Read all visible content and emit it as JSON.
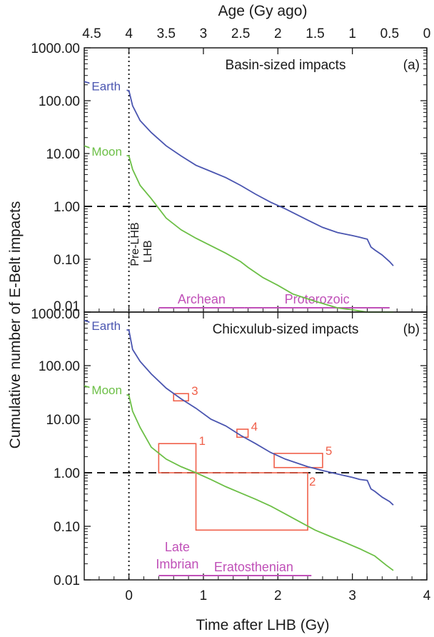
{
  "figure": {
    "top_axis_label": "Age (Gy ago)",
    "bottom_axis_label": "Time after LHB (Gy)",
    "y_axis_label": "Cumulative number of E-Belt impacts",
    "lhb_labels": [
      "Pre-LHB",
      "LHB"
    ]
  },
  "colors": {
    "earth": "#4a55b0",
    "moon": "#6cbf46",
    "box": "#f0604a",
    "era": "#c050b8",
    "axis": "#1a1a1a"
  },
  "chart_data": [
    {
      "type": "line",
      "title": "Basin-sized impacts",
      "panel_label": "(a)",
      "xlabel": "Time after LHB (Gy)",
      "top_xlabel": "Age (Gy ago)",
      "ylabel": "Cumulative number of E-Belt impacts",
      "xlim": [
        -0.6,
        4.0
      ],
      "ylim": [
        0.01,
        1000
      ],
      "yscale": "log",
      "yticks": [
        1000,
        100,
        10,
        1,
        0.1,
        0.01
      ],
      "ytick_labels": [
        "1000.00",
        "100.00",
        "10.00",
        "1.00",
        "0.10",
        "0.01"
      ],
      "xticks": [
        0,
        1,
        2,
        3,
        4
      ],
      "xtick_labels": [
        "0",
        "1",
        "2",
        "3",
        "4"
      ],
      "top_ticks": [
        4.5,
        4,
        3.5,
        3,
        2.5,
        2,
        1.5,
        1,
        0.5,
        0
      ],
      "top_tick_labels": [
        "4.5",
        "4",
        "3.5",
        "3",
        "2.5",
        "2",
        "1.5",
        "1",
        "0.5",
        "0"
      ],
      "reference_lines": [
        {
          "axis": "y",
          "value": 1
        },
        {
          "axis": "x",
          "value": 0
        }
      ],
      "series": [
        {
          "name": "Earth",
          "color": "#4a55b0",
          "x": [
            -0.6,
            -0.4,
            -0.2,
            0.0,
            0.05,
            0.15,
            0.3,
            0.5,
            0.7,
            0.9,
            1.1,
            1.3,
            1.5,
            1.7,
            1.9,
            2.1,
            2.4,
            2.6,
            2.8,
            3.0,
            3.1,
            3.2,
            3.25,
            3.3,
            3.4,
            3.5,
            3.55
          ],
          "y": [
            230,
            190,
            170,
            155,
            80,
            42,
            25,
            14,
            9,
            6,
            4.6,
            3.5,
            2.5,
            1.7,
            1.2,
            0.9,
            0.55,
            0.4,
            0.32,
            0.28,
            0.26,
            0.24,
            0.17,
            0.15,
            0.12,
            0.09,
            0.075
          ]
        },
        {
          "name": "Moon",
          "color": "#6cbf46",
          "x": [
            -0.6,
            -0.4,
            -0.2,
            0.0,
            0.05,
            0.15,
            0.3,
            0.5,
            0.7,
            0.9,
            1.1,
            1.3,
            1.5,
            1.6,
            1.8,
            2.0,
            2.2,
            2.5,
            2.8,
            3.0,
            3.2,
            3.4,
            3.55
          ],
          "y": [
            14,
            11,
            10,
            9,
            5,
            2.5,
            1.4,
            0.6,
            0.36,
            0.25,
            0.18,
            0.13,
            0.09,
            0.07,
            0.045,
            0.032,
            0.022,
            0.016,
            0.012,
            0.011,
            0.01,
            0.01,
            0.01
          ]
        }
      ],
      "eras": [
        {
          "label": "Archean",
          "x_start": 0.4,
          "x_end": 1.55
        },
        {
          "label": "Proterozoic",
          "x_start": 1.55,
          "x_end": 3.5
        }
      ]
    },
    {
      "type": "line",
      "title": "Chicxulub-sized impacts",
      "panel_label": "(b)",
      "xlabel": "Time after LHB (Gy)",
      "ylabel": "Cumulative number of E-Belt impacts",
      "xlim": [
        -0.6,
        4.0
      ],
      "ylim": [
        0.01,
        1000
      ],
      "yscale": "log",
      "yticks": [
        1000,
        100,
        10,
        1,
        0.1,
        0.01
      ],
      "ytick_labels": [
        "1000.00",
        "100.00",
        "10.00",
        "1.00",
        "0.10",
        "0.01"
      ],
      "xticks": [
        0,
        1,
        2,
        3,
        4
      ],
      "xtick_labels": [
        "0",
        "1",
        "2",
        "3",
        "4"
      ],
      "reference_lines": [
        {
          "axis": "y",
          "value": 1
        },
        {
          "axis": "x",
          "value": 0
        }
      ],
      "series": [
        {
          "name": "Earth",
          "color": "#4a55b0",
          "x": [
            -0.6,
            -0.4,
            -0.2,
            0.0,
            0.05,
            0.15,
            0.3,
            0.5,
            0.7,
            0.9,
            1.1,
            1.3,
            1.5,
            1.7,
            1.9,
            2.1,
            2.4,
            2.6,
            2.8,
            3.0,
            3.1,
            3.2,
            3.25,
            3.3,
            3.4,
            3.5,
            3.55
          ],
          "y": [
            700,
            560,
            490,
            460,
            200,
            120,
            70,
            38,
            24,
            16,
            10,
            7.5,
            5,
            3.5,
            2.4,
            1.8,
            1.3,
            1.1,
            0.95,
            0.82,
            0.75,
            0.72,
            0.5,
            0.45,
            0.35,
            0.29,
            0.25
          ]
        },
        {
          "name": "Moon",
          "color": "#6cbf46",
          "x": [
            -0.6,
            -0.4,
            -0.2,
            0.0,
            0.05,
            0.15,
            0.3,
            0.5,
            0.7,
            0.9,
            1.1,
            1.3,
            1.5,
            1.7,
            1.9,
            2.1,
            2.3,
            2.5,
            2.7,
            2.9,
            3.1,
            3.3,
            3.45,
            3.55
          ],
          "y": [
            42,
            35,
            31,
            28,
            14,
            7,
            3,
            1.8,
            1.3,
            1.0,
            0.75,
            0.55,
            0.42,
            0.32,
            0.24,
            0.17,
            0.12,
            0.085,
            0.065,
            0.05,
            0.038,
            0.028,
            0.019,
            0.015
          ]
        }
      ],
      "boxes": [
        {
          "label": "1",
          "x": [
            0.4,
            0.9
          ],
          "y": [
            1.0,
            3.5
          ]
        },
        {
          "label": "2",
          "x": [
            0.9,
            2.4
          ],
          "y": [
            0.085,
            1.0
          ]
        },
        {
          "label": "3",
          "x": [
            0.6,
            0.8
          ],
          "y": [
            22,
            30
          ]
        },
        {
          "label": "4",
          "x": [
            1.45,
            1.6
          ],
          "y": [
            4.6,
            6.5
          ]
        },
        {
          "label": "5",
          "x": [
            1.95,
            2.6
          ],
          "y": [
            1.25,
            2.3
          ]
        }
      ],
      "eras": [
        {
          "label": "Late Imbrian",
          "x_start": 0.4,
          "x_end": 0.9
        },
        {
          "label": "Eratosthenian",
          "x_start": 0.9,
          "x_end": 2.45
        }
      ]
    }
  ]
}
